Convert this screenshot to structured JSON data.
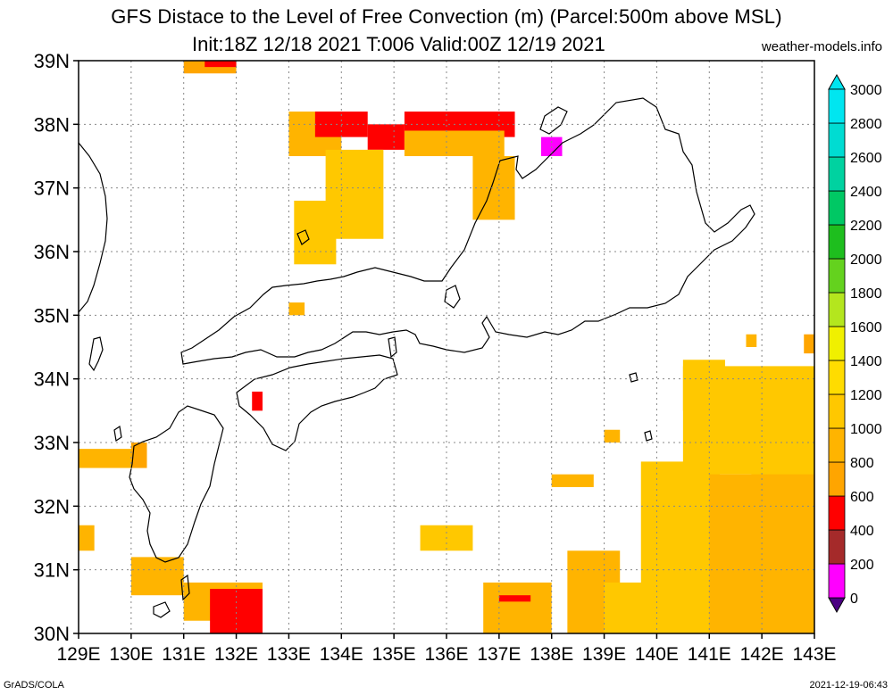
{
  "title": {
    "line1": "GFS Distace to the Level of Free Convection (m) (Parcel:500m above MSL)",
    "line2": "Init:18Z 12/18 2021 T:006 Valid:00Z 12/19 2021"
  },
  "credit": "weather-models.info",
  "footer": {
    "left": "GrADS/COLA",
    "right": "2021-12-19-06:43"
  },
  "axes": {
    "x_ticks": [
      "129E",
      "130E",
      "131E",
      "132E",
      "133E",
      "134E",
      "135E",
      "136E",
      "137E",
      "138E",
      "139E",
      "140E",
      "141E",
      "142E",
      "143E"
    ],
    "y_ticks": [
      "39N",
      "38N",
      "37N",
      "36N",
      "35N",
      "34N",
      "33N",
      "32N",
      "31N",
      "30N"
    ],
    "lon_range": [
      129,
      143
    ],
    "lat_range": [
      30,
      39
    ],
    "grid": true
  },
  "colorbar": {
    "levels": [
      0,
      200,
      400,
      600,
      800,
      1000,
      1200,
      1400,
      1600,
      1800,
      2000,
      2200,
      2400,
      2600,
      2800,
      3000
    ],
    "labels": [
      "0",
      "200",
      "400",
      "600",
      "800",
      "1000",
      "1200",
      "1400",
      "1600",
      "1800",
      "2000",
      "2200",
      "2400",
      "2600",
      "2800",
      "3000"
    ],
    "colors": [
      "#4b0082",
      "#ff00ff",
      "#a52a2a",
      "#ff0000",
      "#ffa500",
      "#ffb400",
      "#ffc800",
      "#ffdc00",
      "#f0f000",
      "#b4e61e",
      "#64d21e",
      "#1ebe1e",
      "#00c864",
      "#00d2a0",
      "#00dcd2",
      "#00e6f0"
    ]
  },
  "chart_data": {
    "type": "heatmap",
    "title": "GFS Distace to the Level of Free Convection (m) (Parcel:500m above MSL)",
    "subtitle": "Init:18Z 12/18 2021 T:006 Valid:00Z 12/19 2021",
    "units": "m",
    "cells": [
      {
        "lon": [
          131,
          132
        ],
        "lat": [
          38.8,
          39
        ],
        "value": 700
      },
      {
        "lon": [
          131.4,
          132
        ],
        "lat": [
          38.9,
          39
        ],
        "value": 500
      },
      {
        "lon": [
          133,
          134
        ],
        "lat": [
          37.5,
          38.2
        ],
        "value": 950
      },
      {
        "lon": [
          133.5,
          134.5
        ],
        "lat": [
          37.8,
          38.2
        ],
        "value": 550
      },
      {
        "lon": [
          134.5,
          135.2
        ],
        "lat": [
          37.6,
          38
        ],
        "value": 500
      },
      {
        "lon": [
          133.7,
          134.8
        ],
        "lat": [
          36.2,
          37.6
        ],
        "value": 1050
      },
      {
        "lon": [
          133.1,
          133.9
        ],
        "lat": [
          35.8,
          36.8
        ],
        "value": 1150
      },
      {
        "lon": [
          135.2,
          137.3
        ],
        "lat": [
          37.8,
          38.2
        ],
        "value": 400
      },
      {
        "lon": [
          135.2,
          137.1
        ],
        "lat": [
          37.5,
          37.9
        ],
        "value": 950
      },
      {
        "lon": [
          136.5,
          137.3
        ],
        "lat": [
          36.5,
          37.5
        ],
        "value": 900
      },
      {
        "lon": [
          137.8,
          138.2
        ],
        "lat": [
          37.5,
          37.8
        ],
        "value": 150
      },
      {
        "lon": [
          133,
          133.3
        ],
        "lat": [
          35,
          35.2
        ],
        "value": 900
      },
      {
        "lon": [
          132.3,
          132.5
        ],
        "lat": [
          33.5,
          33.8
        ],
        "value": 400
      },
      {
        "lon": [
          129,
          130.3
        ],
        "lat": [
          32.6,
          32.9
        ],
        "value": 900
      },
      {
        "lon": [
          130,
          130.3
        ],
        "lat": [
          32.6,
          33
        ],
        "value": 650
      },
      {
        "lon": [
          129,
          129.3
        ],
        "lat": [
          31.3,
          31.7
        ],
        "value": 900
      },
      {
        "lon": [
          130,
          131
        ],
        "lat": [
          30.6,
          31.2
        ],
        "value": 900
      },
      {
        "lon": [
          131,
          132.5
        ],
        "lat": [
          30.2,
          30.8
        ],
        "value": 950
      },
      {
        "lon": [
          131.5,
          132.5
        ],
        "lat": [
          30,
          30.7
        ],
        "value": 500
      },
      {
        "lon": [
          132.1,
          132.2
        ],
        "lat": [
          30.2,
          30.4
        ],
        "value": 400
      },
      {
        "lon": [
          135.5,
          136.5
        ],
        "lat": [
          31.3,
          31.7
        ],
        "value": 1050
      },
      {
        "lon": [
          136.7,
          138
        ],
        "lat": [
          30,
          30.8
        ],
        "value": 900
      },
      {
        "lon": [
          137,
          137.6
        ],
        "lat": [
          30.5,
          30.6
        ],
        "value": 500
      },
      {
        "lon": [
          138,
          138.8
        ],
        "lat": [
          32.3,
          32.5
        ],
        "value": 900
      },
      {
        "lon": [
          138.3,
          139.3
        ],
        "lat": [
          30,
          31.3
        ],
        "value": 950
      },
      {
        "lon": [
          139,
          140
        ],
        "lat": [
          30,
          30.8
        ],
        "value": 1000
      },
      {
        "lon": [
          139.7,
          141.2
        ],
        "lat": [
          30,
          32.7
        ],
        "value": 1000
      },
      {
        "lon": [
          140.5,
          143
        ],
        "lat": [
          32.5,
          34.2
        ],
        "value": 1000
      },
      {
        "lon": [
          140.5,
          141.3
        ],
        "lat": [
          33.5,
          34.3
        ],
        "value": 1150
      },
      {
        "lon": [
          141.8,
          143
        ],
        "lat": [
          32.2,
          33.6
        ],
        "value": 1100
      },
      {
        "lon": [
          141,
          143
        ],
        "lat": [
          30,
          32.5
        ],
        "value": 900
      },
      {
        "lon": [
          142.8,
          143
        ],
        "lat": [
          34.4,
          34.7
        ],
        "value": 600
      },
      {
        "lon": [
          141.7,
          141.9
        ],
        "lat": [
          34.5,
          34.7
        ],
        "value": 800
      },
      {
        "lon": [
          139,
          139.3
        ],
        "lat": [
          33,
          33.2
        ],
        "value": 900
      }
    ]
  }
}
